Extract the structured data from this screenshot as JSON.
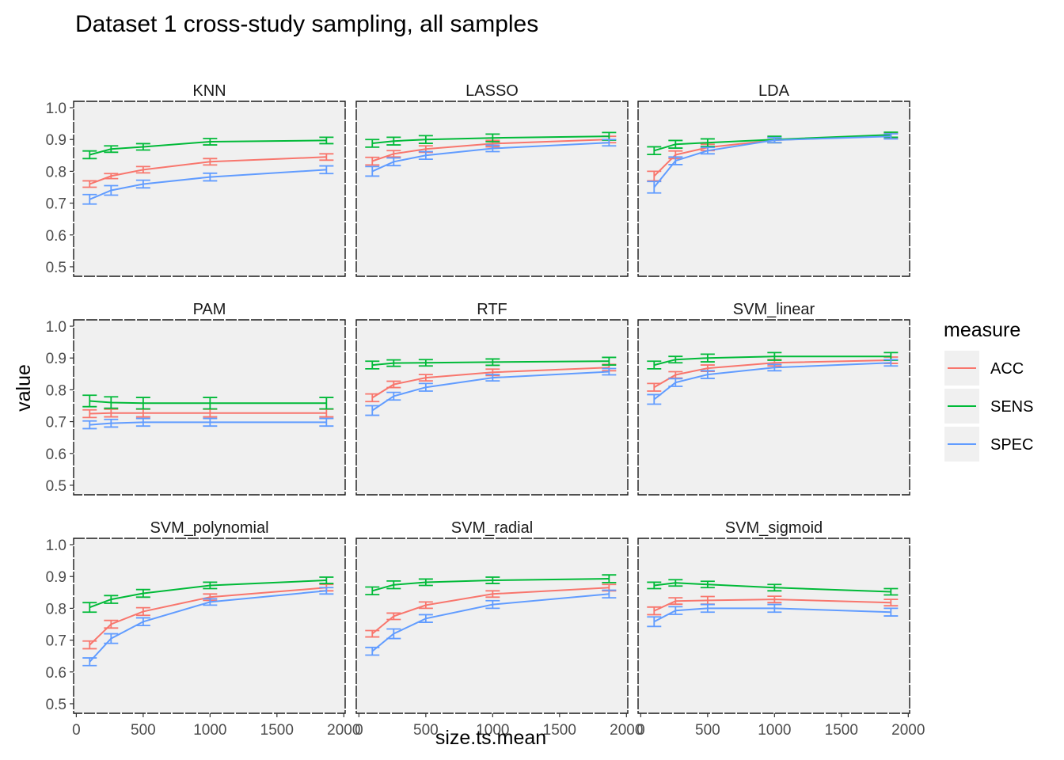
{
  "chart_data": {
    "type": "line",
    "title": "Dataset 1 cross-study sampling, all samples",
    "xlabel": "size.ts.mean",
    "ylabel": "value",
    "xlim": [
      -20,
      2010
    ],
    "ylim": [
      0.47,
      1.02
    ],
    "x_ticks": [
      0,
      500,
      1000,
      1500,
      2000
    ],
    "x_tick_labels": [
      "0",
      "500",
      "1000",
      "1500",
      "2000"
    ],
    "y_ticks": [
      0.5,
      0.6,
      0.7,
      0.8,
      0.9,
      1.0
    ],
    "y_tick_labels": [
      "0.5",
      "0.6",
      "0.7",
      "0.8",
      "0.9",
      "1.0"
    ],
    "grid": false,
    "legend": {
      "title": "measure",
      "position": "right",
      "entries": [
        "ACC",
        "SENS",
        "SPEC"
      ]
    },
    "colors": {
      "ACC": "#F8766D",
      "SENS": "#00BA38",
      "SPEC": "#619CFF"
    },
    "panels": [
      {
        "name": "KNN",
        "x": [
          100,
          260,
          500,
          1000,
          1870
        ],
        "series": [
          {
            "name": "ACC",
            "y": [
              0.76,
              0.785,
              0.805,
              0.83,
              0.845
            ],
            "err": [
              0.01,
              0.008,
              0.01,
              0.01,
              0.01
            ]
          },
          {
            "name": "SENS",
            "y": [
              0.852,
              0.87,
              0.877,
              0.893,
              0.897
            ],
            "err": [
              0.012,
              0.01,
              0.01,
              0.01,
              0.01
            ]
          },
          {
            "name": "SPEC",
            "y": [
              0.712,
              0.74,
              0.76,
              0.782,
              0.805
            ],
            "err": [
              0.015,
              0.015,
              0.012,
              0.012,
              0.012
            ]
          }
        ]
      },
      {
        "name": "LASSO",
        "x": [
          100,
          260,
          500,
          1000,
          1870
        ],
        "series": [
          {
            "name": "ACC",
            "y": [
              0.832,
              0.855,
              0.87,
              0.887,
              0.9
            ],
            "err": [
              0.012,
              0.01,
              0.01,
              0.01,
              0.01
            ]
          },
          {
            "name": "SENS",
            "y": [
              0.888,
              0.895,
              0.9,
              0.905,
              0.91
            ],
            "err": [
              0.012,
              0.012,
              0.012,
              0.012,
              0.012
            ]
          },
          {
            "name": "SPEC",
            "y": [
              0.8,
              0.83,
              0.85,
              0.872,
              0.89
            ],
            "err": [
              0.015,
              0.012,
              0.012,
              0.01,
              0.01
            ]
          }
        ]
      },
      {
        "name": "LDA",
        "x": [
          100,
          260,
          500,
          1000,
          1870
        ],
        "series": [
          {
            "name": "ACC",
            "y": [
              0.785,
              0.852,
              0.875,
              0.898,
              0.912
            ],
            "err": [
              0.015,
              0.012,
              0.01,
              0.008,
              0.008
            ]
          },
          {
            "name": "SENS",
            "y": [
              0.865,
              0.885,
              0.89,
              0.9,
              0.915
            ],
            "err": [
              0.012,
              0.012,
              0.012,
              0.01,
              0.008
            ]
          },
          {
            "name": "SPEC",
            "y": [
              0.75,
              0.833,
              0.865,
              0.898,
              0.91
            ],
            "err": [
              0.018,
              0.012,
              0.01,
              0.008,
              0.008
            ]
          }
        ]
      },
      {
        "name": "PAM",
        "x": [
          100,
          260,
          500,
          1000,
          1870
        ],
        "series": [
          {
            "name": "ACC",
            "y": [
              0.725,
              0.727,
              0.727,
              0.727,
              0.727
            ],
            "err": [
              0.012,
              0.012,
              0.012,
              0.012,
              0.012
            ]
          },
          {
            "name": "SENS",
            "y": [
              0.765,
              0.76,
              0.758,
              0.758,
              0.758
            ],
            "err": [
              0.018,
              0.018,
              0.018,
              0.018,
              0.018
            ]
          },
          {
            "name": "SPEC",
            "y": [
              0.69,
              0.695,
              0.698,
              0.698,
              0.698
            ],
            "err": [
              0.012,
              0.012,
              0.012,
              0.012,
              0.012
            ]
          }
        ]
      },
      {
        "name": "RTF",
        "x": [
          100,
          260,
          500,
          1000,
          1870
        ],
        "series": [
          {
            "name": "ACC",
            "y": [
              0.775,
              0.817,
              0.838,
              0.855,
              0.87
            ],
            "err": [
              0.012,
              0.01,
              0.01,
              0.01,
              0.01
            ]
          },
          {
            "name": "SENS",
            "y": [
              0.878,
              0.884,
              0.885,
              0.887,
              0.89
            ],
            "err": [
              0.012,
              0.01,
              0.01,
              0.01,
              0.012
            ]
          },
          {
            "name": "SPEC",
            "y": [
              0.735,
              0.78,
              0.808,
              0.838,
              0.857
            ],
            "err": [
              0.015,
              0.012,
              0.012,
              0.01,
              0.01
            ]
          }
        ]
      },
      {
        "name": "SVM_linear",
        "x": [
          100,
          260,
          500,
          1000,
          1870
        ],
        "series": [
          {
            "name": "ACC",
            "y": [
              0.808,
              0.847,
              0.868,
              0.885,
              0.893
            ],
            "err": [
              0.012,
              0.01,
              0.01,
              0.01,
              0.01
            ]
          },
          {
            "name": "SENS",
            "y": [
              0.878,
              0.895,
              0.9,
              0.905,
              0.905
            ],
            "err": [
              0.012,
              0.01,
              0.012,
              0.012,
              0.012
            ]
          },
          {
            "name": "SPEC",
            "y": [
              0.77,
              0.823,
              0.848,
              0.87,
              0.885
            ],
            "err": [
              0.015,
              0.012,
              0.012,
              0.01,
              0.01
            ]
          }
        ]
      },
      {
        "name": "SVM_polynomial",
        "x": [
          100,
          260,
          500,
          1000,
          1870
        ],
        "series": [
          {
            "name": "ACC",
            "y": [
              0.685,
              0.75,
              0.79,
              0.835,
              0.865
            ],
            "err": [
              0.012,
              0.012,
              0.012,
              0.01,
              0.01
            ]
          },
          {
            "name": "SENS",
            "y": [
              0.803,
              0.828,
              0.847,
              0.872,
              0.888
            ],
            "err": [
              0.015,
              0.012,
              0.012,
              0.01,
              0.01
            ]
          },
          {
            "name": "SPEC",
            "y": [
              0.632,
              0.705,
              0.758,
              0.82,
              0.855
            ],
            "err": [
              0.012,
              0.015,
              0.012,
              0.01,
              0.01
            ]
          }
        ]
      },
      {
        "name": "SVM_radial",
        "x": [
          100,
          260,
          500,
          1000,
          1870
        ],
        "series": [
          {
            "name": "ACC",
            "y": [
              0.72,
              0.775,
              0.81,
              0.845,
              0.865
            ],
            "err": [
              0.01,
              0.01,
              0.01,
              0.01,
              0.01
            ]
          },
          {
            "name": "SENS",
            "y": [
              0.855,
              0.874,
              0.882,
              0.888,
              0.893
            ],
            "err": [
              0.012,
              0.012,
              0.01,
              0.01,
              0.012
            ]
          },
          {
            "name": "SPEC",
            "y": [
              0.665,
              0.72,
              0.768,
              0.812,
              0.845
            ],
            "err": [
              0.012,
              0.015,
              0.012,
              0.012,
              0.012
            ]
          }
        ]
      },
      {
        "name": "SVM_sigmoid",
        "x": [
          100,
          260,
          500,
          1000,
          1870
        ],
        "series": [
          {
            "name": "ACC",
            "y": [
              0.792,
              0.823,
              0.825,
              0.828,
              0.818
            ],
            "err": [
              0.012,
              0.01,
              0.012,
              0.01,
              0.01
            ]
          },
          {
            "name": "SENS",
            "y": [
              0.872,
              0.88,
              0.875,
              0.865,
              0.852
            ],
            "err": [
              0.01,
              0.01,
              0.01,
              0.01,
              0.01
            ]
          },
          {
            "name": "SPEC",
            "y": [
              0.758,
              0.793,
              0.8,
              0.8,
              0.788
            ],
            "err": [
              0.015,
              0.012,
              0.012,
              0.012,
              0.012
            ]
          }
        ]
      }
    ]
  }
}
